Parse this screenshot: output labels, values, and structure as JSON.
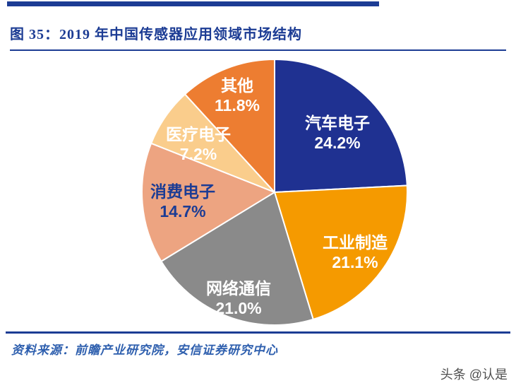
{
  "page": {
    "title": "图 35：2019 年中国传感器应用领域市场结构",
    "source": "资料来源：前瞻产业研究院，安信证券研究中心",
    "watermark": "头条 @认是",
    "accent_color": "#1C3C94",
    "source_text_color": "#2E5FAE"
  },
  "chart_data": {
    "type": "pie",
    "title": "2019 年中国传感器应用领域市场结构",
    "start_angle_deg": 0,
    "direction": "clockwise",
    "legend_position": "inside-labels",
    "slices": [
      {
        "label": "汽车电子",
        "value": 24.2,
        "pct_label": "24.2%",
        "color": "#1F3191",
        "text_color": "#FFFFFF"
      },
      {
        "label": "工业制造",
        "value": 21.1,
        "pct_label": "21.1%",
        "color": "#F59A00",
        "text_color": "#FFFFFF"
      },
      {
        "label": "网络通信",
        "value": 21.0,
        "pct_label": "21.0%",
        "color": "#8A8A8A",
        "text_color": "#FFFFFF"
      },
      {
        "label": "消费电子",
        "value": 14.7,
        "pct_label": "14.7%",
        "color": "#EDA481",
        "text_color": "#1C3C94"
      },
      {
        "label": "医疗电子",
        "value": 7.2,
        "pct_label": "7.2%",
        "color": "#FACD8C",
        "text_color": "#FFFFFF"
      },
      {
        "label": "其他",
        "value": 11.8,
        "pct_label": "11.8%",
        "color": "#ED7D31",
        "text_color": "#FFFFFF"
      }
    ]
  }
}
